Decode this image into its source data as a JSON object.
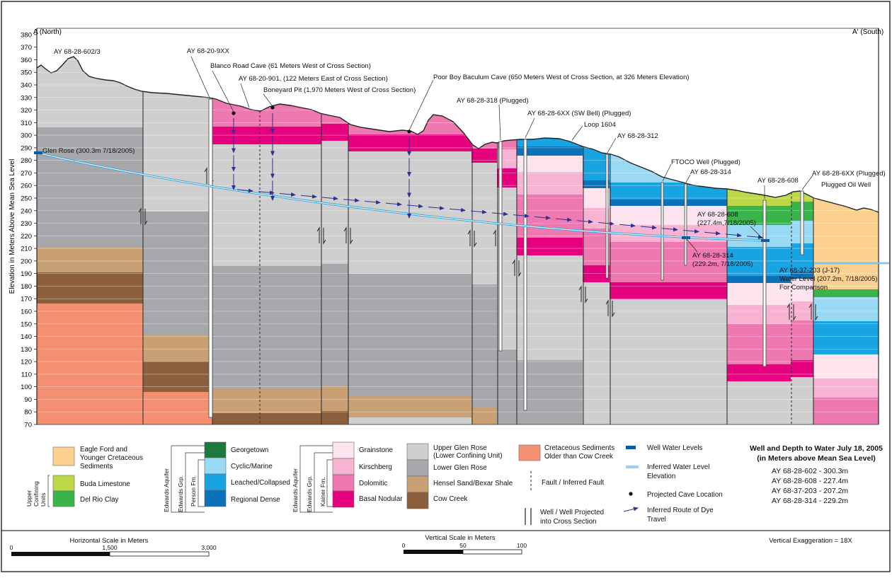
{
  "section": {
    "left_end": "A (North)",
    "right_end": "A' (South)",
    "y_axis_label": "Elevation in Meters Above Mean Sea Level",
    "y_ticks": [
      70,
      80,
      90,
      100,
      110,
      120,
      130,
      140,
      150,
      160,
      170,
      180,
      190,
      200,
      210,
      220,
      230,
      240,
      250,
      260,
      270,
      280,
      290,
      300,
      310,
      320,
      330,
      340,
      350,
      360,
      370,
      380
    ]
  },
  "wells": [
    {
      "label": "AY 68-28-602/3"
    },
    {
      "label": "AY 68-20-9XX"
    },
    {
      "label": "Blanco Road Cave (61 Meters West of Cross Section)"
    },
    {
      "label": "AY 68-20-901, (122 Meters East of Cross Section)"
    },
    {
      "label": "Boneyard Pit (1,970 Meters West of Cross Section)"
    },
    {
      "label": "Poor Boy Baculum Cave (650 Meters West of Cross Section, at 326 Meters Elevation)"
    },
    {
      "label": "AY 68-28-318 (Plugged)"
    },
    {
      "label": "AY 68-28-6XX (SW Bell) (Plugged)"
    },
    {
      "label": "Loop 1604"
    },
    {
      "label": "AY 68-28-312"
    },
    {
      "label": "FTOCO Well (Plugged)"
    },
    {
      "label": "AY 68-28-314"
    },
    {
      "label": "AY 68-28-608"
    },
    {
      "label": "AY 68-28-6XX (Plugged)"
    },
    {
      "label": "Plugged Oil Well"
    }
  ],
  "water_annotations": {
    "glen_rose": "Glen Rose (300.3m 7/18/2005)",
    "w608_1": "AY 68-28-608",
    "w608_2": "(227.4m,7/18/2005)",
    "w314_1": "AY 68-28-314",
    "w314_2": "(229.2m, 7/18/2005)",
    "w203_1": "AY 68-37-203 (J-17)",
    "w203_2": "Water Level (207.2m, 7/18/2005)",
    "w203_3": "For Comparison"
  },
  "colors": {
    "eagle_ford": "#fcd190",
    "buda": "#bdd847",
    "del_rio": "#38b44a",
    "georgetown": "#1b7a3e",
    "cyclic": "#99d9f4",
    "leached": "#18a3e3",
    "regional": "#0b72b9",
    "grainstone": "#fde4ee",
    "kirschberg": "#f7b3d1",
    "dolomitic": "#ee78b0",
    "basal": "#e6017e",
    "upper_glen_rose": "#cfcfcf",
    "lower_glen_rose": "#a7a8ab",
    "hensel": "#c8a073",
    "cow_creek": "#8c5e3b",
    "older": "#f58f72",
    "water": "#0b5ca8",
    "dye": "#2e3192"
  },
  "legend": {
    "eagle_ford": [
      "Eagle Ford and",
      "Younger Cretaceous",
      "Sediments"
    ],
    "buda": "Buda Limestone",
    "del_rio": "Del Rio Clay",
    "upper_confining": [
      "Upper",
      "Confining",
      "Units"
    ],
    "georgetown": "Georgetown",
    "cyclic": "Cyclic/Marine",
    "leached": "Leached/Collapsed",
    "regional": "Regional Dense",
    "edwards_aquifer": "Edwards Aquifer",
    "edwards_grp": "Edwards Grp.",
    "person_fm": "Person Fm.",
    "kainer_fm": "Kainer Fm.",
    "grainstone": "Grainstone",
    "kirschberg": "Kirschberg",
    "dolomitic": "Dolomitic",
    "basal": "Basal Nodular",
    "upper_glen_rose": [
      "Upper Glen Rose",
      "(Lower Confining Unit)"
    ],
    "lower_glen_rose": "Lower Glen Rose",
    "hensel": "Hensel Sand/Bexar Shale",
    "cow_creek": "Cow Creek",
    "older": [
      "Cretaceous Sediments",
      "Older than Cow Creek"
    ],
    "fault": "Fault / Inferred Fault",
    "well_projected": [
      "Well / Well Projected",
      "into Cross Section"
    ],
    "well_levels": "Well Water Levels",
    "inferred_water": [
      "Inferred Water Level",
      "Elevation"
    ],
    "cave": "Projected Cave Location",
    "dye": [
      "Inferred Route of Dye",
      "Travel"
    ]
  },
  "depth_table": {
    "title_1": "Well and Depth to Water July 18, 2005",
    "title_2": "(in Meters above Mean Sea Level)",
    "rows": [
      "AY 68-28-602 - 300.3m",
      "AY 68-28-608 - 227.4m",
      "AY 68-37-203 - 207.2m",
      "AY 68-28-314 - 229.2m"
    ]
  },
  "scales": {
    "horizontal_title": "Horizontal Scale in Meters",
    "h_ticks": [
      "0",
      "1,500",
      "3,000"
    ],
    "vertical_title": "Vertical Scale in Meters",
    "v_ticks": [
      "0",
      "50",
      "100"
    ],
    "exaggeration": "Vertical Exaggeration = 18X"
  }
}
